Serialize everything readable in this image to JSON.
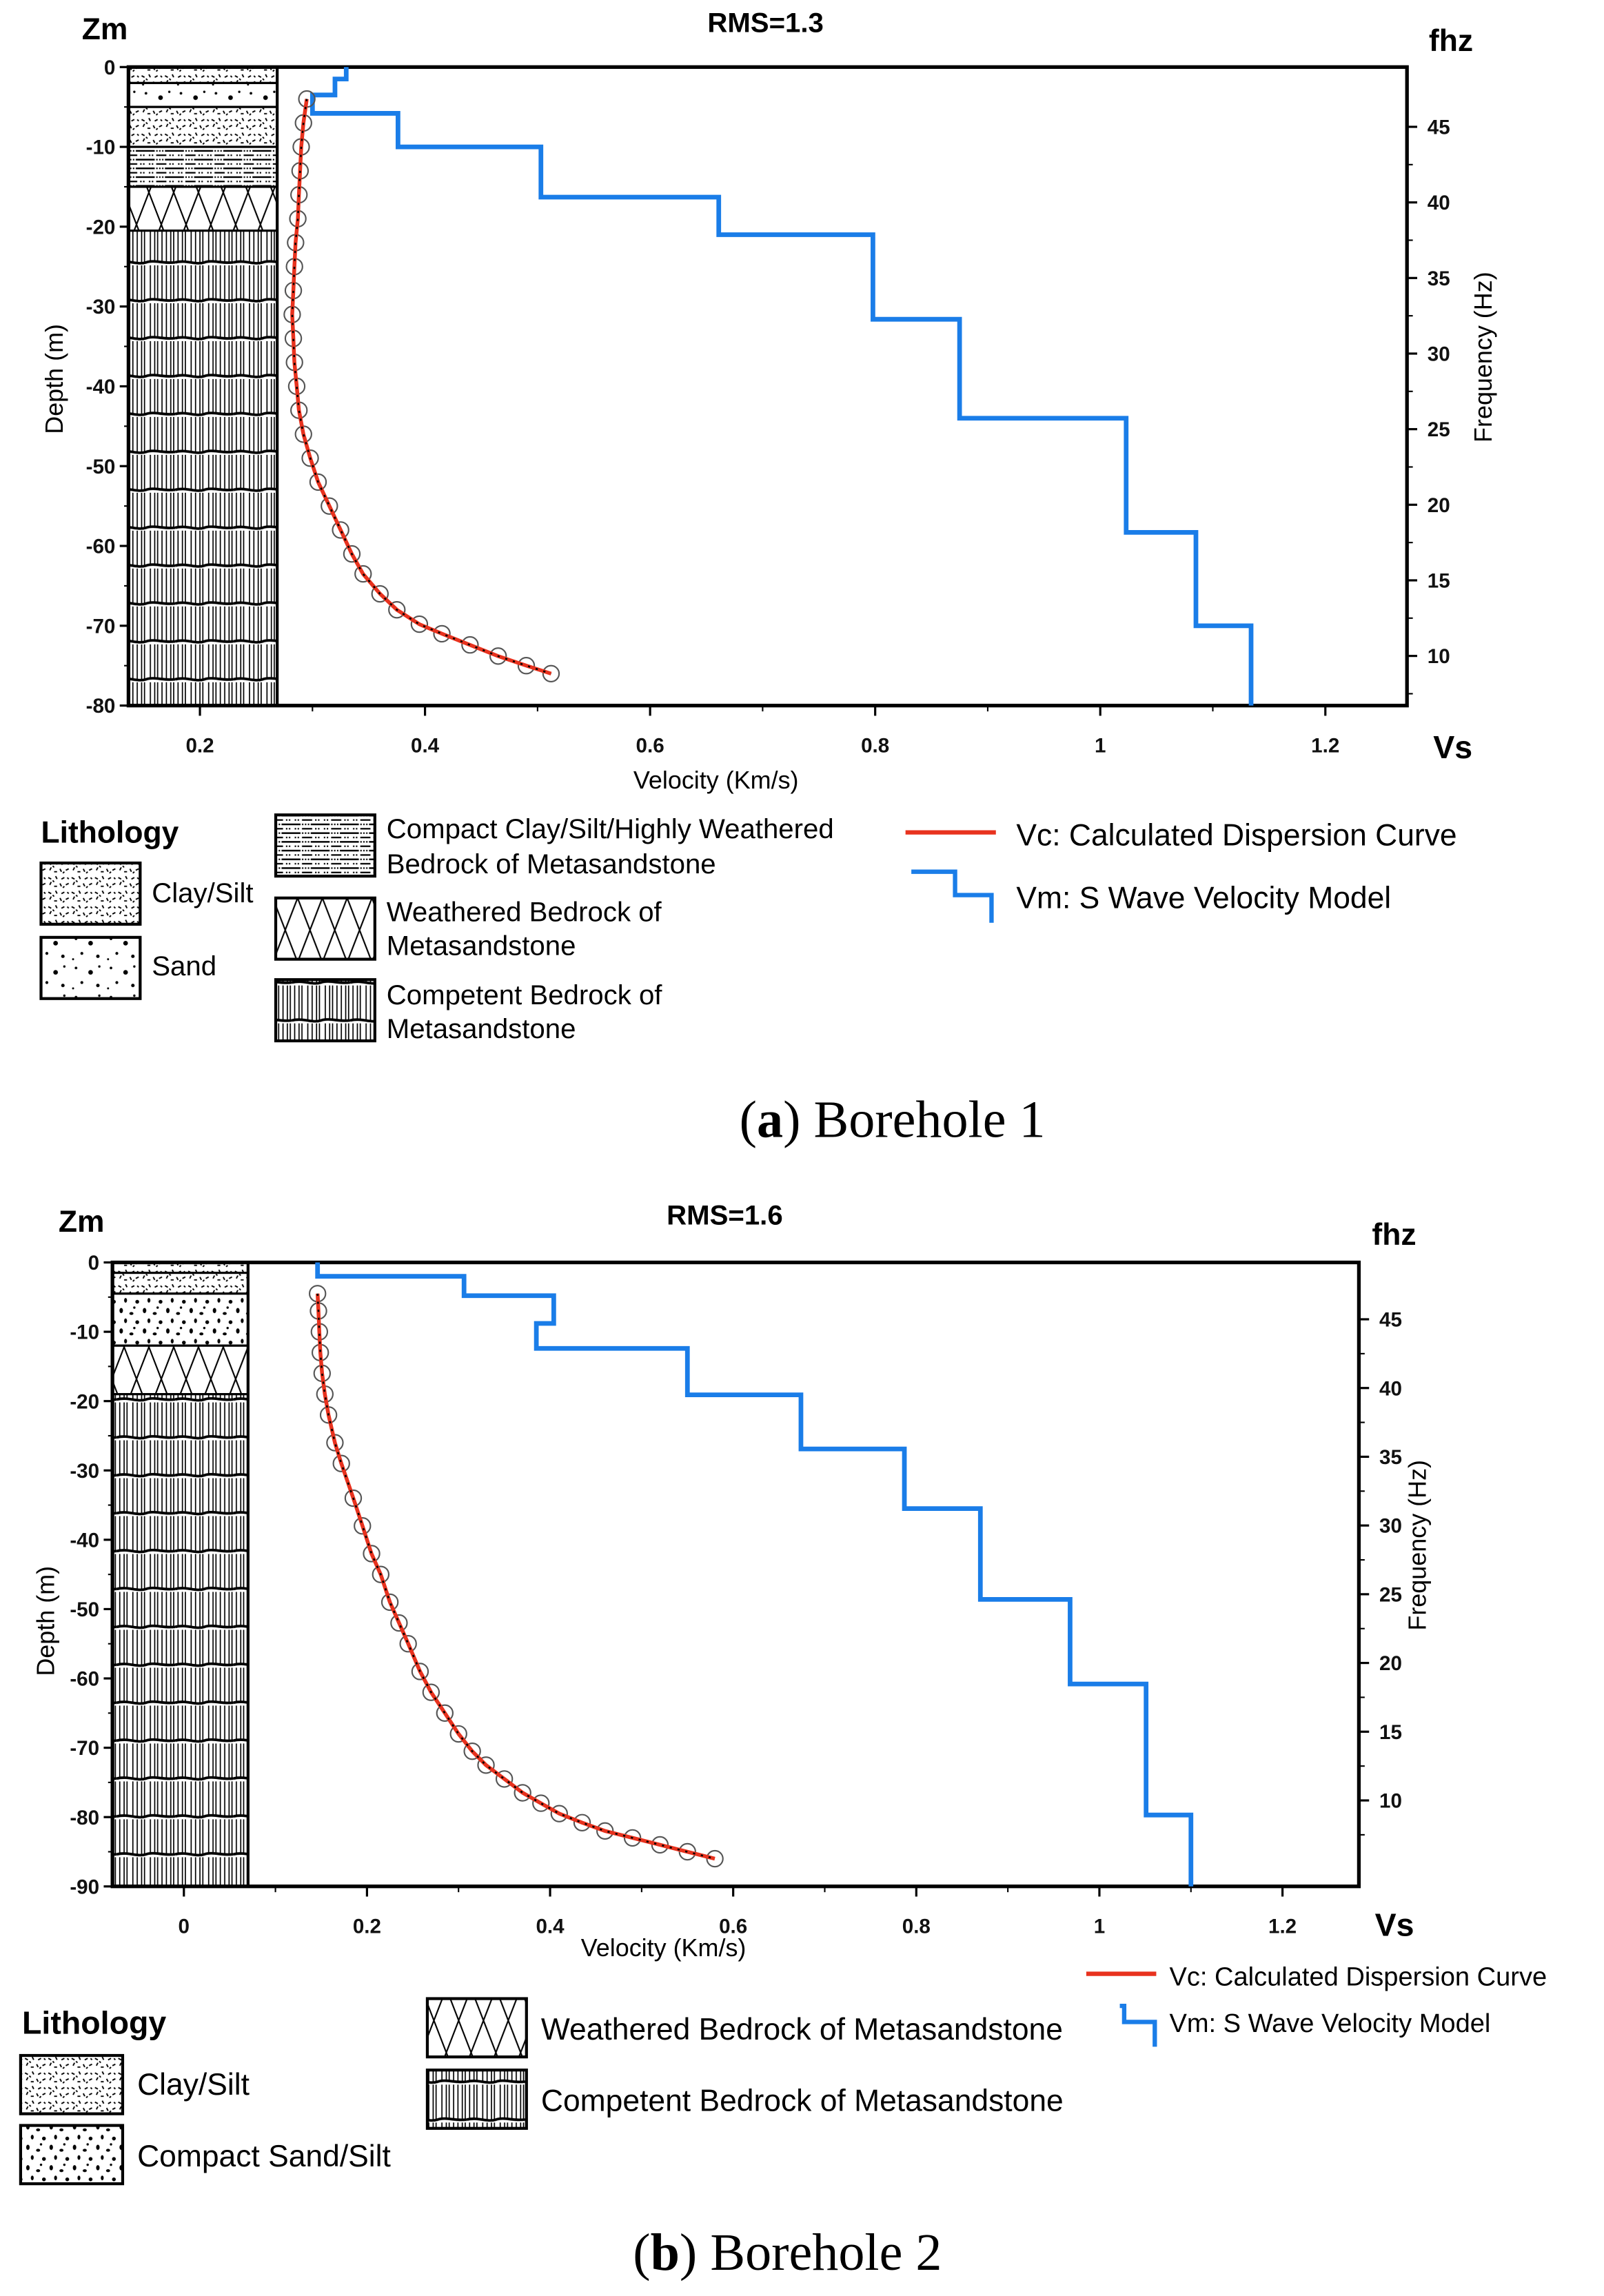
{
  "colors": {
    "vc": "#e8321e",
    "vm": "#1a7de8",
    "axis": "#000000"
  },
  "legend_labels": {
    "clay": "Clay/Silt",
    "sand": "Sand",
    "compact_sand": "Compact Sand/Silt",
    "compact_clay_line1": "Compact Clay/Silt/Highly Weathered",
    "compact_clay_line2": "Bedrock of Metasandstone",
    "weathered_line1": "Weathered Bedrock of",
    "weathered_line2": "Metasandstone",
    "competent_line1": "Competent Bedrock of",
    "competent_line2": "Metasandstone",
    "weathered_full": "Weathered Bedrock of Metasandstone",
    "competent_full": "Competent Bedrock of Metasandstone",
    "vc": "Vc: Calculated Dispersion Curve",
    "vm": "Vm: S Wave Velocity Model",
    "lithology": "Lithology"
  },
  "chart_data": [
    {
      "type": "line",
      "title": "RMS=1.3",
      "caption_letter": "a",
      "caption_rest": ") Borehole 1",
      "caption_open": "(",
      "left_axis_title": "Zm",
      "right_axis_title": "fhz",
      "x_axis_title": "Vs",
      "xlabel": "Velocity (Km/s)",
      "ylabel": "Depth (m)",
      "y2label": "Frequency (Hz)",
      "xlim": [
        0.13,
        1.29
      ],
      "ylim": [
        -80,
        0
      ],
      "x_ticks": [
        "0.2",
        "0.4",
        "0.6",
        "0.8",
        "1",
        "1.2"
      ],
      "x_tick_values": [
        0.2,
        0.4,
        0.6,
        0.8,
        1.0,
        1.2
      ],
      "y_ticks": [
        "0",
        "-10",
        "-20",
        "-30",
        "-40",
        "-50",
        "-60",
        "-70",
        "-80"
      ],
      "y_tick_values": [
        0,
        10,
        20,
        30,
        40,
        50,
        60,
        70,
        80
      ],
      "y2_ticks": [
        "45",
        "40",
        "35",
        "30",
        "25",
        "20",
        "15",
        "10"
      ],
      "y2_tick_values": [
        45,
        40,
        35,
        30,
        25,
        20,
        15,
        10
      ],
      "lithology": [
        {
          "type": "clay",
          "top": 0,
          "bottom": 2
        },
        {
          "type": "sand",
          "top": 2,
          "bottom": 5
        },
        {
          "type": "clay",
          "top": 5,
          "bottom": 10
        },
        {
          "type": "compact",
          "top": 10,
          "bottom": 15
        },
        {
          "type": "weathered",
          "top": 15,
          "bottom": 20.5
        },
        {
          "type": "competent",
          "top": 20.5,
          "bottom": 80
        }
      ],
      "series": [
        {
          "name": "Vm: S Wave Velocity Model",
          "kind": "step",
          "layers": [
            [
              0.33,
              0,
              1.5
            ],
            [
              0.32,
              1.5,
              3.5
            ],
            [
              0.3,
              3.5,
              5.8
            ],
            [
              0.376,
              5.8,
              10
            ],
            [
              0.503,
              10,
              16.3
            ],
            [
              0.661,
              16.3,
              21
            ],
            [
              0.798,
              21,
              31.6
            ],
            [
              0.875,
              31.6,
              44
            ],
            [
              1.023,
              44,
              58.3
            ],
            [
              1.085,
              58.3,
              70
            ],
            [
              1.134,
              70,
              80
            ]
          ]
        },
        {
          "name": "Vc: Calculated Dispersion Curve",
          "kind": "curve",
          "points": [
            [
              0.295,
              4
            ],
            [
              0.292,
              7
            ],
            [
              0.29,
              10
            ],
            [
              0.289,
              13
            ],
            [
              0.288,
              16
            ],
            [
              0.287,
              19
            ],
            [
              0.285,
              22
            ],
            [
              0.284,
              25
            ],
            [
              0.283,
              28
            ],
            [
              0.282,
              31
            ],
            [
              0.283,
              34
            ],
            [
              0.284,
              37
            ],
            [
              0.286,
              40
            ],
            [
              0.288,
              43
            ],
            [
              0.292,
              46
            ],
            [
              0.298,
              49
            ],
            [
              0.305,
              52
            ],
            [
              0.315,
              55
            ],
            [
              0.325,
              58
            ],
            [
              0.335,
              61
            ],
            [
              0.345,
              63.5
            ],
            [
              0.36,
              66
            ],
            [
              0.375,
              68
            ],
            [
              0.395,
              69.8
            ],
            [
              0.415,
              71
            ],
            [
              0.44,
              72.4
            ],
            [
              0.465,
              73.8
            ],
            [
              0.49,
              75
            ],
            [
              0.512,
              76
            ]
          ]
        }
      ]
    },
    {
      "type": "line",
      "title": "RMS=1.6",
      "caption_letter": "b",
      "caption_rest": ") Borehole 2",
      "caption_open": "(",
      "left_axis_title": "Zm",
      "right_axis_title": "fhz",
      "x_axis_title": "Vs",
      "xlabel": "Velocity (Km/s)",
      "ylabel": "Depth (m)",
      "y2label": "Frequency (Hz)",
      "xlim": [
        -0.08,
        1.28
      ],
      "ylim": [
        -90,
        0
      ],
      "x_ticks": [
        "0",
        "0.2",
        "0.4",
        "0.6",
        "0.8",
        "1",
        "1.2"
      ],
      "x_tick_values": [
        0,
        0.2,
        0.4,
        0.6,
        0.8,
        1.0,
        1.2
      ],
      "y_ticks": [
        "0",
        "-10",
        "-20",
        "-30",
        "-40",
        "-50",
        "-60",
        "-70",
        "-80",
        "-90"
      ],
      "y_tick_values": [
        0,
        10,
        20,
        30,
        40,
        50,
        60,
        70,
        80,
        90
      ],
      "y2_ticks": [
        "45",
        "40",
        "35",
        "30",
        "25",
        "20",
        "15",
        "10"
      ],
      "y2_tick_values": [
        45,
        40,
        35,
        30,
        25,
        20,
        15,
        10
      ],
      "lithology": [
        {
          "type": "clay",
          "top": 0,
          "bottom": 1.5
        },
        {
          "type": "clay",
          "top": 1.5,
          "bottom": 4.5
        },
        {
          "type": "sand2",
          "top": 4.5,
          "bottom": 12
        },
        {
          "type": "weathered",
          "top": 12,
          "bottom": 19
        },
        {
          "type": "competent",
          "top": 19,
          "bottom": 90
        }
      ],
      "series": [
        {
          "name": "Vm: S Wave Velocity Model",
          "kind": "step",
          "layers": [
            [
              0.146,
              0,
              2
            ],
            [
              0.306,
              2,
              4.8
            ],
            [
              0.404,
              4.8,
              8.8
            ],
            [
              0.385,
              8.8,
              12.4
            ],
            [
              0.55,
              12.4,
              19.1
            ],
            [
              0.674,
              19.1,
              26.9
            ],
            [
              0.787,
              26.9,
              35.5
            ],
            [
              0.87,
              35.5,
              48.6
            ],
            [
              0.968,
              48.6,
              60.8
            ],
            [
              1.051,
              60.8,
              79.7
            ],
            [
              1.1,
              79.7,
              90
            ]
          ]
        },
        {
          "name": "Vc: Calculated Dispersion Curve",
          "kind": "curve",
          "points": [
            [
              0.146,
              4.5
            ],
            [
              0.147,
              7
            ],
            [
              0.148,
              10
            ],
            [
              0.149,
              13
            ],
            [
              0.151,
              16
            ],
            [
              0.154,
              19
            ],
            [
              0.158,
              22
            ],
            [
              0.165,
              26
            ],
            [
              0.172,
              29
            ],
            [
              0.185,
              34
            ],
            [
              0.195,
              38
            ],
            [
              0.205,
              42
            ],
            [
              0.215,
              45
            ],
            [
              0.225,
              49
            ],
            [
              0.235,
              52
            ],
            [
              0.245,
              55
            ],
            [
              0.258,
              59
            ],
            [
              0.27,
              62
            ],
            [
              0.285,
              65
            ],
            [
              0.3,
              68
            ],
            [
              0.315,
              70.5
            ],
            [
              0.33,
              72.5
            ],
            [
              0.35,
              74.5
            ],
            [
              0.37,
              76.5
            ],
            [
              0.39,
              78
            ],
            [
              0.41,
              79.5
            ],
            [
              0.435,
              80.8
            ],
            [
              0.46,
              82
            ],
            [
              0.49,
              83
            ],
            [
              0.52,
              84
            ],
            [
              0.55,
              85
            ],
            [
              0.58,
              86
            ]
          ]
        }
      ]
    }
  ]
}
